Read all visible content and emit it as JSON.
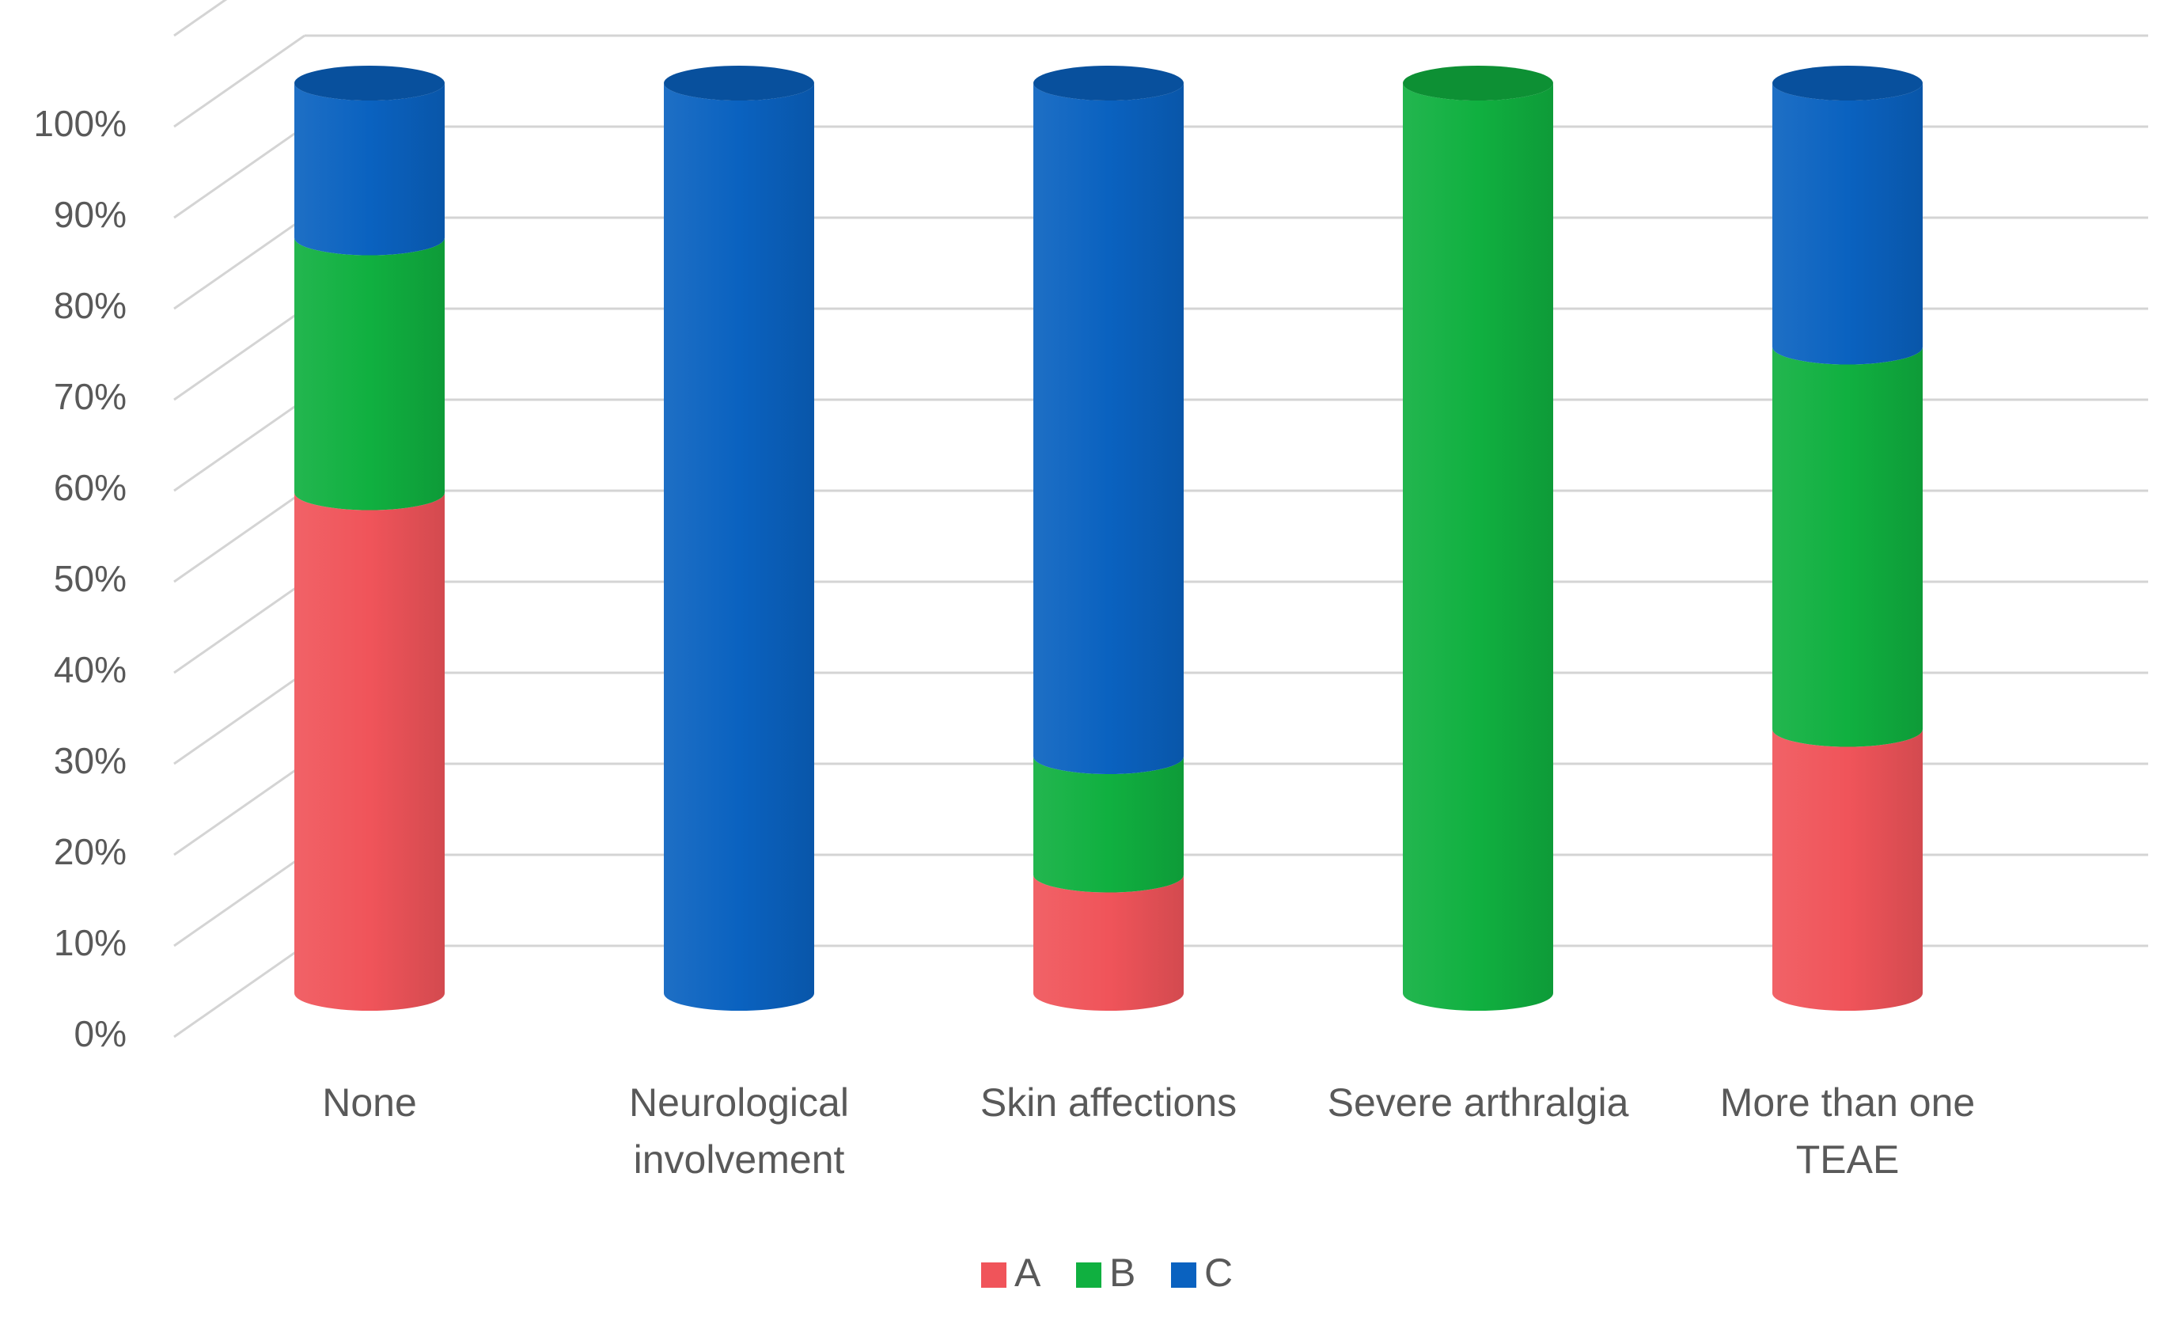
{
  "chart_data": {
    "type": "bar",
    "style": "stacked-100-percent-3d-cylinder",
    "title": "",
    "xlabel": "",
    "ylabel": "",
    "ylim": [
      0,
      100
    ],
    "y_ticks": [
      "0%",
      "10%",
      "20%",
      "30%",
      "40%",
      "50%",
      "60%",
      "70%",
      "80%",
      "90%",
      "100%"
    ],
    "grid": true,
    "legend_position": "bottom",
    "categories": [
      [
        "None"
      ],
      [
        "Neurological",
        "involvement"
      ],
      [
        "Skin affections"
      ],
      [
        "Severe arthralgia"
      ],
      [
        "More than one",
        "TEAE"
      ]
    ],
    "series": [
      {
        "name": "A",
        "color": "#f0545a",
        "values": [
          55,
          0,
          13,
          0,
          29
        ]
      },
      {
        "name": "B",
        "color": "#10b040",
        "values": [
          28,
          0,
          13,
          100,
          42
        ]
      },
      {
        "name": "C",
        "color": "#0a62c0",
        "values": [
          17,
          100,
          74,
          0,
          29
        ]
      }
    ]
  }
}
